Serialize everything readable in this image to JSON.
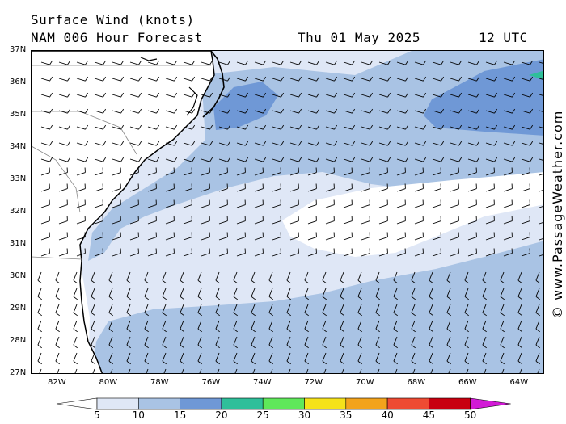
{
  "header": {
    "title": "Surface Wind (knots)",
    "model": "NAM 006 Hour Forecast",
    "date": "Thu 01 May 2025",
    "time": "12 UTC"
  },
  "copyright": "© www.PassageWeather.com",
  "lat_labels": [
    "37N",
    "36N",
    "35N",
    "34N",
    "33N",
    "32N",
    "31N",
    "30N",
    "29N",
    "28N",
    "27N"
  ],
  "lon_labels": [
    "82W",
    "80W",
    "78W",
    "76W",
    "74W",
    "72W",
    "70W",
    "68W",
    "66W",
    "64W"
  ],
  "colorbar": {
    "labels": [
      "5",
      "10",
      "15",
      "20",
      "25",
      "30",
      "35",
      "40",
      "45",
      "50"
    ],
    "colors": [
      "#ffffff",
      "#dfe7f6",
      "#a9c3e4",
      "#6f98d6",
      "#2fbf9a",
      "#5fe85a",
      "#f5e21a",
      "#f3a31c",
      "#ee4b33",
      "#c80010",
      "#d21ad6"
    ]
  }
}
